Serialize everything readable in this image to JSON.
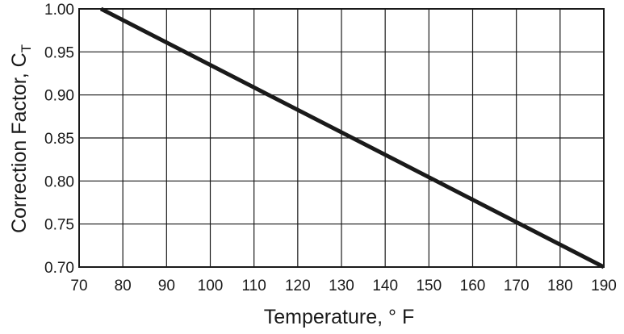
{
  "chart_data": {
    "type": "line",
    "xlabel": "Temperature, ° F",
    "ylabel": "Correction Factor, C",
    "ylabel_subscript": "T",
    "xlim": [
      70,
      190
    ],
    "ylim": [
      0.7,
      1.0
    ],
    "x_ticks": [
      "70",
      "80",
      "90",
      "100",
      "110",
      "120",
      "130",
      "140",
      "150",
      "160",
      "170",
      "180",
      "190"
    ],
    "y_ticks": [
      "1.00",
      "0.95",
      "0.90",
      "0.85",
      "0.80",
      "0.75",
      "0.70"
    ],
    "grid": true,
    "series": [
      {
        "x": [
          75,
          190
        ],
        "y": [
          1.0,
          0.7
        ]
      }
    ]
  }
}
